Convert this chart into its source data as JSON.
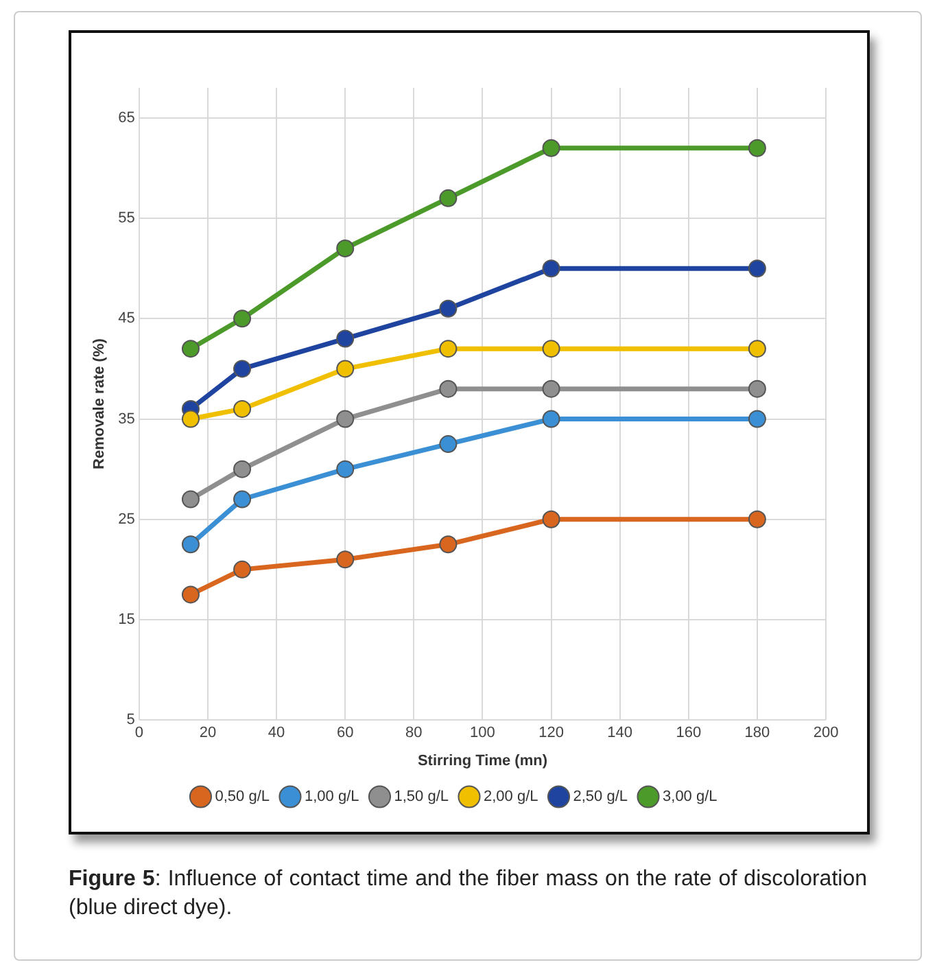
{
  "chart_data": {
    "type": "line",
    "xlabel": "Stirring Time (mn)",
    "ylabel": "Removale rate (%)",
    "annotations": [
      "Figure 5: Influence of contact time and the fiber mass on the rate of discoloration (blue direct dye)."
    ],
    "x": [
      15,
      30,
      60,
      90,
      120,
      180
    ],
    "xlim": [
      0,
      200
    ],
    "xticks": [
      0,
      20,
      40,
      60,
      80,
      100,
      120,
      140,
      160,
      180,
      200
    ],
    "ylim": [
      5,
      68
    ],
    "yticks": [
      5,
      15,
      25,
      35,
      45,
      55,
      65
    ],
    "grid": true,
    "legend": "bottom",
    "marker": "circle",
    "line_style": "solid",
    "series": [
      {
        "name": "0,50 g/L",
        "color": "#d9661f",
        "values": [
          17.5,
          20,
          21,
          22.5,
          25,
          25
        ]
      },
      {
        "name": "1,00 g/L",
        "color": "#3b8fd4",
        "values": [
          22.5,
          27,
          30,
          32.5,
          35,
          35
        ]
      },
      {
        "name": "1,50 g/L",
        "color": "#8f8f8f",
        "values": [
          27,
          30,
          35,
          38,
          38,
          38
        ]
      },
      {
        "name": "2,00 g/L",
        "color": "#f0c000",
        "values": [
          35,
          36,
          40,
          42,
          42,
          42
        ]
      },
      {
        "name": "2,50 g/L",
        "color": "#1f44a0",
        "values": [
          36,
          40,
          43,
          46,
          50,
          50
        ]
      },
      {
        "name": "3,00 g/L",
        "color": "#4c9a2a",
        "values": [
          42,
          45,
          52,
          57,
          62,
          62
        ]
      }
    ]
  }
}
